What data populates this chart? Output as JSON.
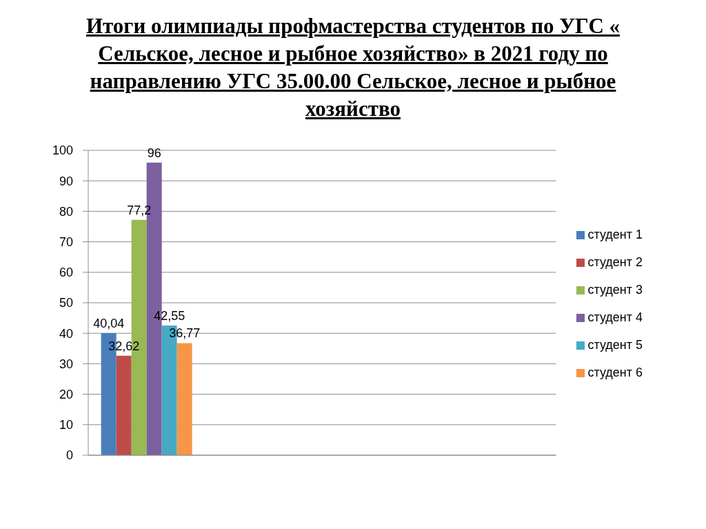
{
  "chart_data": {
    "type": "bar",
    "title": "Итоги олимпиады профмастерства студентов по УГС « Сельское, лесное и рыбное хозяйство» в 2021 году по направлению УГС 35.00.00 Сельское, лесное и рыбное хозяйство",
    "categories": [
      null,
      null,
      null,
      null
    ],
    "series": [
      {
        "name": "студент 1",
        "color": "#4a7ebb",
        "values": [
          40.04,
          null,
          null,
          null
        ],
        "value_labels": [
          "40,04",
          null,
          null,
          null
        ]
      },
      {
        "name": "студент 2",
        "color": "#be4b48",
        "values": [
          32.62,
          null,
          null,
          null
        ],
        "value_labels": [
          "32,62",
          null,
          null,
          null
        ]
      },
      {
        "name": "студент 3",
        "color": "#98b954",
        "values": [
          77.2,
          null,
          null,
          null
        ],
        "value_labels": [
          "77,2",
          null,
          null,
          null
        ]
      },
      {
        "name": "студент 4",
        "color": "#7d60a0",
        "values": [
          96,
          null,
          null,
          null
        ],
        "value_labels": [
          "96",
          null,
          null,
          null
        ]
      },
      {
        "name": "студент 5",
        "color": "#46aac5",
        "values": [
          42.55,
          null,
          null,
          null
        ],
        "value_labels": [
          "42,55",
          null,
          null,
          null
        ]
      },
      {
        "name": "студент 6",
        "color": "#f79646",
        "values": [
          36.77,
          null,
          null,
          null
        ],
        "value_labels": [
          "36,77",
          null,
          null,
          null
        ]
      }
    ],
    "ylim": [
      0,
      100
    ],
    "yticks": [
      0,
      10,
      20,
      30,
      40,
      50,
      60,
      70,
      80,
      90,
      100
    ],
    "grid": "y",
    "legend": "right"
  }
}
